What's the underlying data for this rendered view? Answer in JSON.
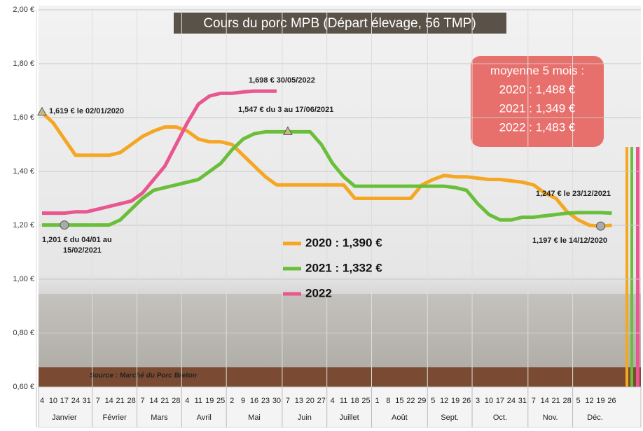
{
  "chart_data": {
    "type": "line",
    "title": "Cours du porc MPB (Départ élevage, 56 TMP)",
    "categories": [
      "4",
      "10",
      "17",
      "24",
      "31",
      "7",
      "14",
      "21",
      "28",
      "7",
      "14",
      "21",
      "28",
      "4",
      "11",
      "19",
      "25",
      "2",
      "9",
      "16",
      "23",
      "30",
      "7",
      "13",
      "20",
      "27",
      "4",
      "11",
      "18",
      "25",
      "1",
      "8",
      "15",
      "22",
      "29",
      "5",
      "12",
      "19",
      "26",
      "3",
      "10",
      "17",
      "24",
      "31",
      "7",
      "14",
      "21",
      "28",
      "5",
      "12",
      "19",
      "26"
    ],
    "months": [
      {
        "label": "Janvier",
        "weeks": 5
      },
      {
        "label": "Février",
        "weeks": 4
      },
      {
        "label": "Mars",
        "weeks": 4
      },
      {
        "label": "Avril",
        "weeks": 4
      },
      {
        "label": "Mai",
        "weeks": 5
      },
      {
        "label": "Juin",
        "weeks": 4
      },
      {
        "label": "Juillet",
        "weeks": 4
      },
      {
        "label": "Août",
        "weeks": 5
      },
      {
        "label": "Sept.",
        "weeks": 4
      },
      {
        "label": "Oct.",
        "weeks": 5
      },
      {
        "label": "Nov.",
        "weeks": 4
      },
      {
        "label": "Déc.",
        "weeks": 4
      }
    ],
    "series": [
      {
        "name": "2020 : 1,390 €",
        "color": "#f5a623",
        "values": [
          1.619,
          1.58,
          1.52,
          1.46,
          1.46,
          1.46,
          1.46,
          1.47,
          1.5,
          1.53,
          1.55,
          1.565,
          1.565,
          1.55,
          1.52,
          1.51,
          1.51,
          1.5,
          1.46,
          1.42,
          1.38,
          1.35,
          1.35,
          1.35,
          1.35,
          1.35,
          1.35,
          1.35,
          1.3,
          1.3,
          1.3,
          1.3,
          1.3,
          1.3,
          1.35,
          1.37,
          1.385,
          1.38,
          1.38,
          1.375,
          1.37,
          1.37,
          1.365,
          1.36,
          1.35,
          1.32,
          1.3,
          1.25,
          1.22,
          1.2,
          1.197,
          1.2
        ]
      },
      {
        "name": "2021 : 1,332 €",
        "color": "#6abf3a",
        "values": [
          1.201,
          1.201,
          1.201,
          1.201,
          1.201,
          1.201,
          1.201,
          1.22,
          1.26,
          1.3,
          1.33,
          1.34,
          1.35,
          1.36,
          1.37,
          1.4,
          1.43,
          1.48,
          1.52,
          1.54,
          1.547,
          1.547,
          1.547,
          1.547,
          1.547,
          1.5,
          1.43,
          1.38,
          1.345,
          1.345,
          1.345,
          1.345,
          1.345,
          1.345,
          1.345,
          1.345,
          1.345,
          1.34,
          1.33,
          1.28,
          1.24,
          1.22,
          1.22,
          1.23,
          1.23,
          1.235,
          1.24,
          1.245,
          1.247,
          1.247,
          1.247,
          1.245
        ]
      },
      {
        "name": "2022",
        "color": "#e8578f",
        "values": [
          1.245,
          1.245,
          1.245,
          1.25,
          1.25,
          1.26,
          1.27,
          1.28,
          1.29,
          1.32,
          1.37,
          1.42,
          1.5,
          1.58,
          1.65,
          1.68,
          1.69,
          1.69,
          1.695,
          1.698,
          1.698,
          1.698,
          null,
          null,
          null,
          null,
          null,
          null,
          null,
          null,
          null,
          null,
          null,
          null,
          null,
          null,
          null,
          null,
          null,
          null,
          null,
          null,
          null,
          null,
          null,
          null,
          null,
          null,
          null,
          null,
          null,
          null
        ]
      }
    ],
    "ylim": [
      0.6,
      2.0
    ],
    "yticks": [
      {
        "value": 0.6,
        "label": "0,60 €"
      },
      {
        "value": 0.8,
        "label": "0,80 €"
      },
      {
        "value": 1.0,
        "label": "1,00 €"
      },
      {
        "value": 1.2,
        "label": "1,20 €"
      },
      {
        "value": 1.4,
        "label": "1,40 €"
      },
      {
        "value": 1.6,
        "label": "1,60 €"
      },
      {
        "value": 1.8,
        "label": "1,80 €"
      },
      {
        "value": 2.0,
        "label": "2,00 €"
      }
    ],
    "grid": true,
    "annotations": [
      {
        "lines": [
          "1,619 € le 02/01/2020"
        ]
      },
      {
        "lines": [
          "1,698 € 30/05/2022"
        ]
      },
      {
        "lines": [
          "1,547 € du 3 au 17/06/2021"
        ]
      },
      {
        "lines": [
          "1,201 € du 04/01 au",
          "15/02/2021"
        ]
      },
      {
        "lines": [
          "1,247 € le 23/12/2021"
        ]
      },
      {
        "lines": [
          "1,197 € le 14/12/2020"
        ]
      }
    ],
    "summary_box": [
      "moyenne 5 mois :",
      "2020 : 1,488 €",
      "2021 : 1,349 €",
      "2022 : 1,483 €"
    ],
    "source": "Source : Marché du Porc Breton"
  }
}
